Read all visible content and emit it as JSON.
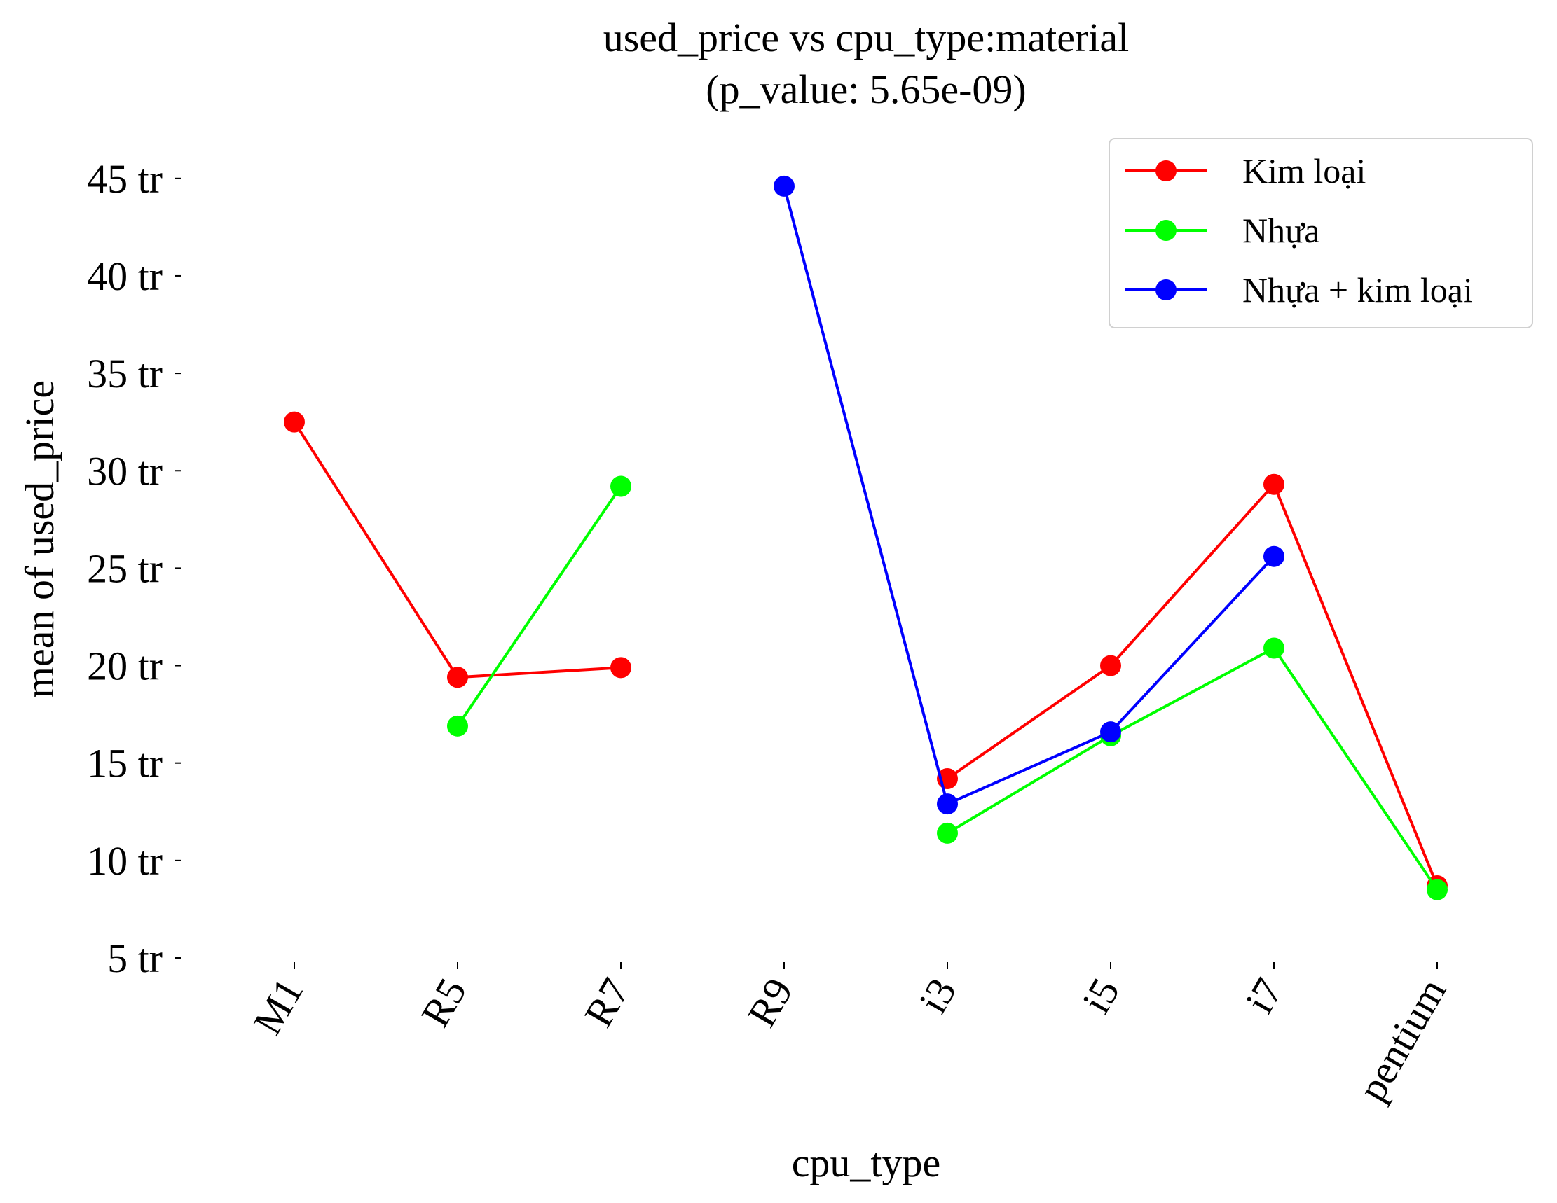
{
  "chart_data": {
    "type": "line",
    "title": "used_price vs cpu_type:material",
    "subtitle": "(p_value: 5.65e-09)",
    "xlabel": "cpu_type",
    "ylabel": "mean of used_price",
    "categories": [
      "M1",
      "R5",
      "R7",
      "R9",
      "i3",
      "i5",
      "i7",
      "pentium"
    ],
    "y_ticks": [
      {
        "value": 5,
        "label": "5 tr"
      },
      {
        "value": 10,
        "label": "10 tr"
      },
      {
        "value": 15,
        "label": "15 tr"
      },
      {
        "value": 20,
        "label": "20 tr"
      },
      {
        "value": 25,
        "label": "25 tr"
      },
      {
        "value": 30,
        "label": "30 tr"
      },
      {
        "value": 35,
        "label": "35 tr"
      },
      {
        "value": 40,
        "label": "40 tr"
      },
      {
        "value": 45,
        "label": "45 tr"
      }
    ],
    "ylim": [
      5,
      46
    ],
    "y_unit": "tr",
    "grid": false,
    "legend_position": "top-right",
    "series": [
      {
        "name": "Kim loại",
        "color": "#ff0000",
        "values": [
          32.5,
          19.4,
          19.9,
          null,
          14.2,
          20.0,
          29.3,
          8.7
        ]
      },
      {
        "name": "Nhựa",
        "color": "#00ff00",
        "values": [
          null,
          16.9,
          29.2,
          null,
          11.4,
          16.4,
          20.9,
          8.5
        ]
      },
      {
        "name": "Nhựa + kim loại",
        "color": "#0000ff",
        "values": [
          null,
          null,
          null,
          44.6,
          12.9,
          16.6,
          25.6,
          null
        ]
      }
    ]
  }
}
